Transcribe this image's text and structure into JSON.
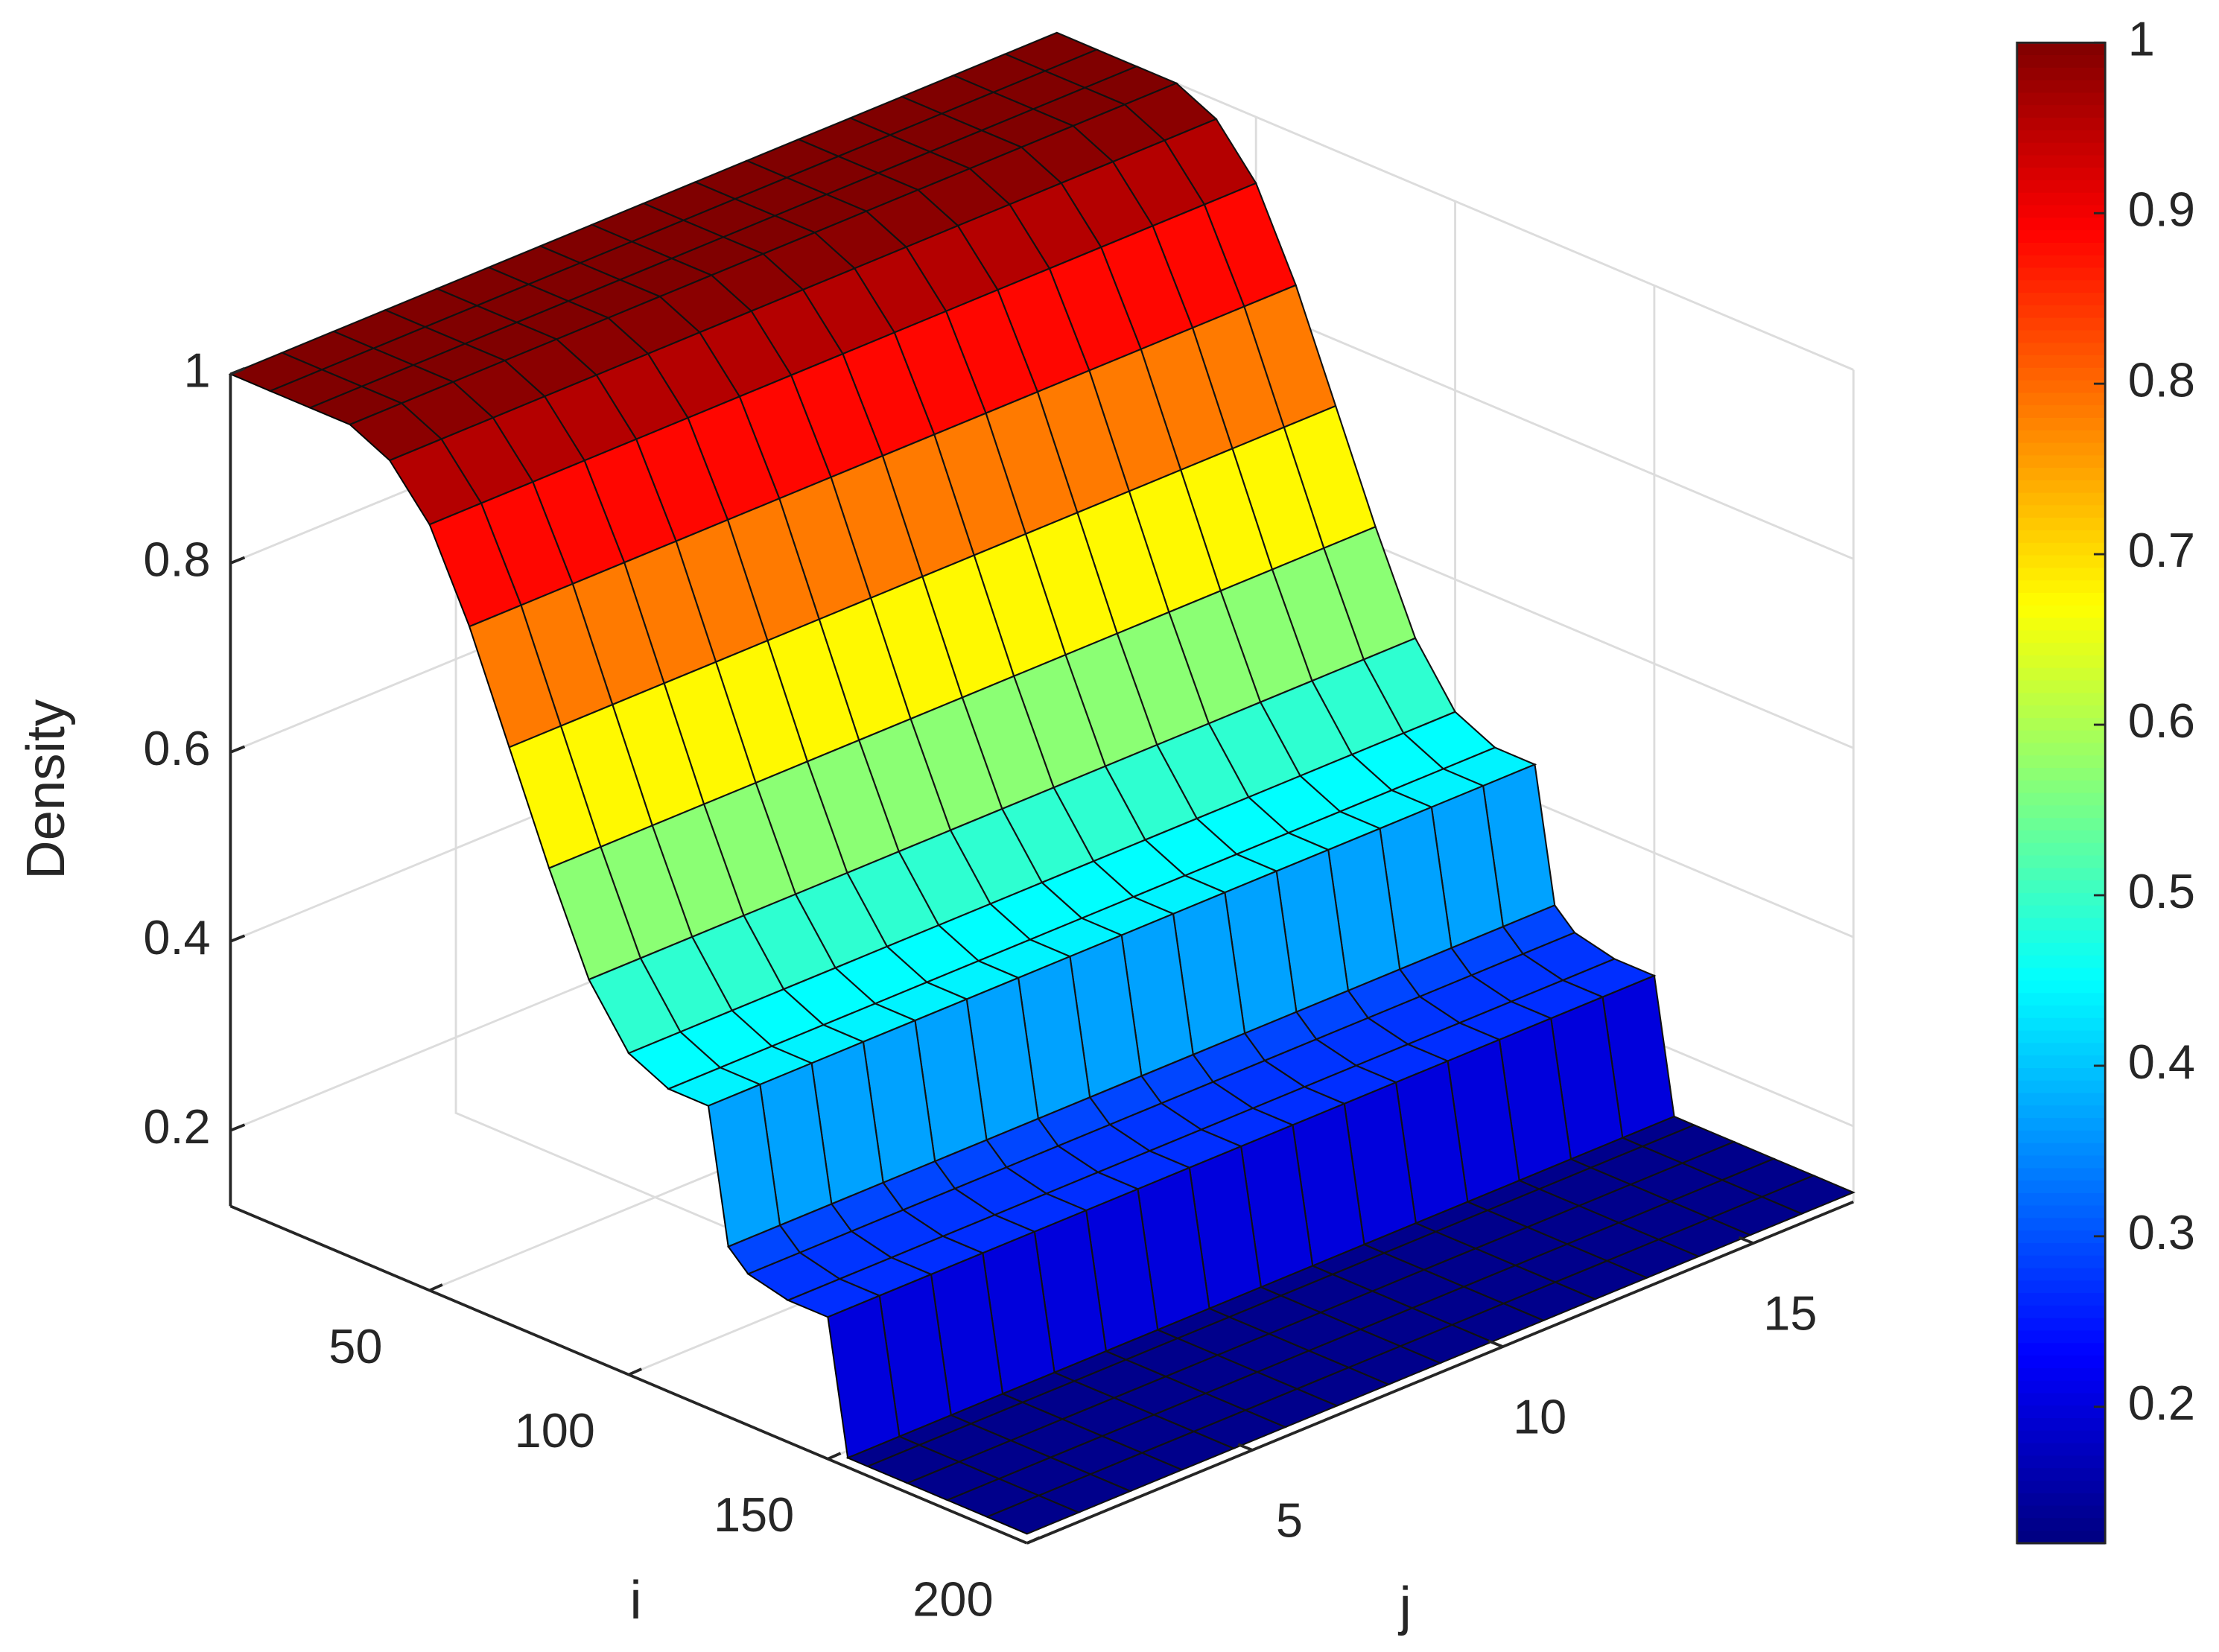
{
  "chart_data": {
    "type": "surface3d",
    "xlabel": "i",
    "ylabel": "j",
    "zlabel": "Density",
    "x": [
      0,
      10,
      20,
      30,
      40,
      50,
      60,
      70,
      80,
      90,
      100,
      110,
      120,
      125,
      130,
      140,
      150,
      155,
      160,
      170,
      180,
      190,
      200
    ],
    "values": [
      1,
      1,
      1,
      1,
      0.98,
      0.93,
      0.84,
      0.73,
      0.62,
      0.52,
      0.46,
      0.44,
      0.44,
      0.3,
      0.28,
      0.27,
      0.27,
      0.13,
      0.13,
      0.13,
      0.13,
      0.13,
      0.13
    ],
    "xlim": [
      0,
      200
    ],
    "xticks": [
      50,
      100,
      150,
      200
    ],
    "ylim": [
      0.5,
      17
    ],
    "yticks": [
      5,
      10,
      15
    ],
    "zlim": [
      0.12,
      1
    ],
    "zticks": [
      0.2,
      0.4,
      0.6,
      0.8,
      1
    ],
    "colormap": "jet",
    "clim": [
      0.12,
      1
    ],
    "cticks": [
      0.2,
      0.3,
      0.4,
      0.5,
      0.6,
      0.7,
      0.8,
      0.9,
      1
    ],
    "grid": true
  }
}
